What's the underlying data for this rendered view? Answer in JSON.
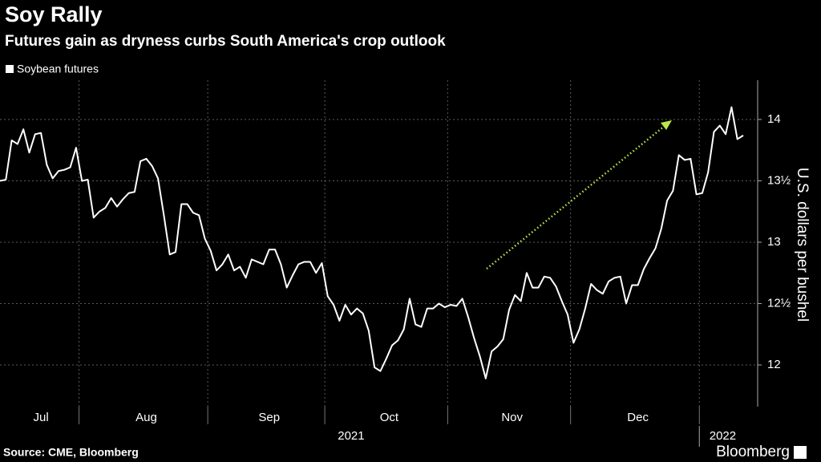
{
  "chart_data": {
    "type": "line",
    "title": "Soy Rally",
    "subtitle": "Futures gain as dryness curbs South America's crop outlook",
    "y_label": "U.S. dollars per bushel",
    "source": "Source: CME, Bloomberg",
    "brand": "Bloomberg",
    "categories": [
      "Jul",
      null,
      null,
      null,
      null,
      null,
      null,
      null,
      null,
      null,
      null,
      null,
      null,
      null,
      "Aug",
      null,
      null,
      null,
      null,
      null,
      null,
      null,
      null,
      null,
      null,
      null,
      null,
      null,
      null,
      null,
      null,
      null,
      null,
      null,
      null,
      null,
      "Sep",
      null,
      null,
      null,
      null,
      null,
      null,
      null,
      null,
      null,
      null,
      null,
      null,
      null,
      null,
      null,
      null,
      null,
      null,
      null,
      "Oct",
      null,
      null,
      null,
      null,
      null,
      null,
      null,
      null,
      null,
      null,
      null,
      null,
      null,
      null,
      null,
      null,
      null,
      null,
      null,
      null,
      "Nov",
      null,
      null,
      null,
      null,
      null,
      null,
      null,
      null,
      null,
      null,
      null,
      null,
      null,
      null,
      null,
      null,
      null,
      null,
      null,
      null,
      "Dec",
      null,
      null,
      null,
      null,
      null,
      null,
      null,
      null,
      null,
      null,
      null,
      null,
      null,
      null,
      null,
      null,
      null,
      null,
      null,
      null,
      null,
      null,
      null,
      null,
      null,
      null,
      null,
      null,
      null
    ],
    "year_categories": [
      "2021",
      null,
      null,
      null,
      null,
      null,
      null,
      null,
      null,
      null,
      null,
      null,
      null,
      null,
      null,
      null,
      null,
      null,
      null,
      null,
      null,
      null,
      null,
      null,
      null,
      null,
      null,
      null,
      null,
      null,
      null,
      null,
      null,
      null,
      null,
      null,
      null,
      null,
      null,
      null,
      null,
      null,
      null,
      null,
      null,
      null,
      null,
      null,
      null,
      null,
      null,
      null,
      null,
      null,
      null,
      null,
      null,
      null,
      null,
      null,
      null,
      null,
      null,
      null,
      null,
      null,
      null,
      null,
      null,
      null,
      null,
      null,
      null,
      null,
      null,
      null,
      null,
      null,
      null,
      null,
      null,
      null,
      null,
      null,
      null,
      null,
      null,
      null,
      null,
      null,
      null,
      null,
      null,
      null,
      null,
      null,
      null,
      null,
      null,
      null,
      null,
      null,
      null,
      null,
      null,
      null,
      null,
      null,
      null,
      null,
      null,
      null,
      null,
      null,
      null,
      null,
      null,
      null,
      null,
      null,
      "2022",
      null,
      null,
      null,
      null,
      null,
      null,
      null
    ],
    "series": [
      {
        "name": "Soybean futures",
        "color": "#ffffff",
        "values": [
          13.5,
          13.51,
          13.83,
          13.8,
          13.92,
          13.73,
          13.88,
          13.89,
          13.63,
          13.52,
          13.58,
          13.59,
          13.61,
          13.77,
          13.5,
          13.51,
          13.2,
          13.25,
          13.28,
          13.36,
          13.29,
          13.35,
          13.4,
          13.41,
          13.66,
          13.68,
          13.62,
          13.52,
          13.22,
          12.9,
          12.92,
          13.31,
          13.31,
          13.24,
          13.22,
          13.03,
          12.93,
          12.77,
          12.82,
          12.9,
          12.77,
          12.8,
          12.71,
          12.86,
          12.84,
          12.82,
          12.94,
          12.94,
          12.82,
          12.63,
          12.73,
          12.82,
          12.84,
          12.84,
          12.75,
          12.83,
          12.56,
          12.49,
          12.36,
          12.49,
          12.41,
          12.46,
          12.42,
          12.28,
          11.98,
          11.95,
          12.05,
          12.16,
          12.2,
          12.29,
          12.54,
          12.33,
          12.31,
          12.46,
          12.46,
          12.5,
          12.47,
          12.49,
          12.48,
          12.54,
          12.39,
          12.22,
          12.07,
          11.89,
          12.11,
          12.15,
          12.21,
          12.45,
          12.57,
          12.52,
          12.75,
          12.63,
          12.63,
          12.72,
          12.71,
          12.64,
          12.52,
          12.41,
          12.18,
          12.29,
          12.46,
          12.66,
          12.61,
          12.58,
          12.68,
          12.71,
          12.72,
          12.5,
          12.65,
          12.65,
          12.78,
          12.87,
          12.95,
          13.11,
          13.34,
          13.42,
          13.71,
          13.67,
          13.68,
          13.39,
          13.4,
          13.57,
          13.9,
          13.95,
          13.88,
          14.1,
          13.84,
          13.87
        ]
      }
    ],
    "ylim": [
      11.66,
      14.32
    ],
    "yticks": [
      12,
      {
        "value": 12.5,
        "label": "12½"
      },
      13,
      {
        "value": 13.5,
        "label": "13½"
      },
      14
    ],
    "grid": true,
    "legend": "top-left"
  }
}
